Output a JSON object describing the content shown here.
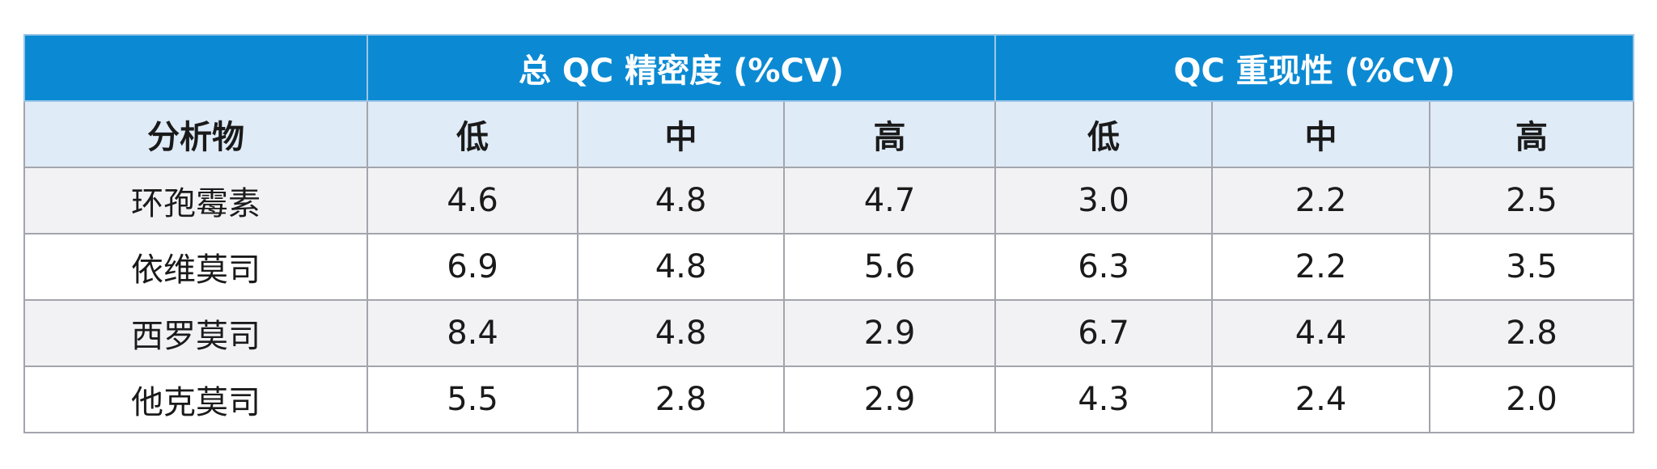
{
  "header": {
    "groups": [
      "总 QC 精密度 (%CV)",
      "QC 重现性 (%CV)"
    ],
    "columns": [
      "分析物",
      "低",
      "中",
      "高",
      "低",
      "中",
      "高"
    ]
  },
  "table": {
    "rows": [
      [
        "环孢霉素",
        "4.6",
        "4.8",
        "4.7",
        "3.0",
        "2.2",
        "2.5"
      ],
      [
        "依维莫司",
        "6.9",
        "4.8",
        "5.6",
        "6.3",
        "2.2",
        "3.5"
      ],
      [
        "西罗莫司",
        "8.4",
        "4.8",
        "2.9",
        "6.7",
        "4.4",
        "2.8"
      ],
      [
        "他克莫司",
        "5.5",
        "2.8",
        "2.9",
        "4.3",
        "2.4",
        "2.0"
      ]
    ]
  }
}
